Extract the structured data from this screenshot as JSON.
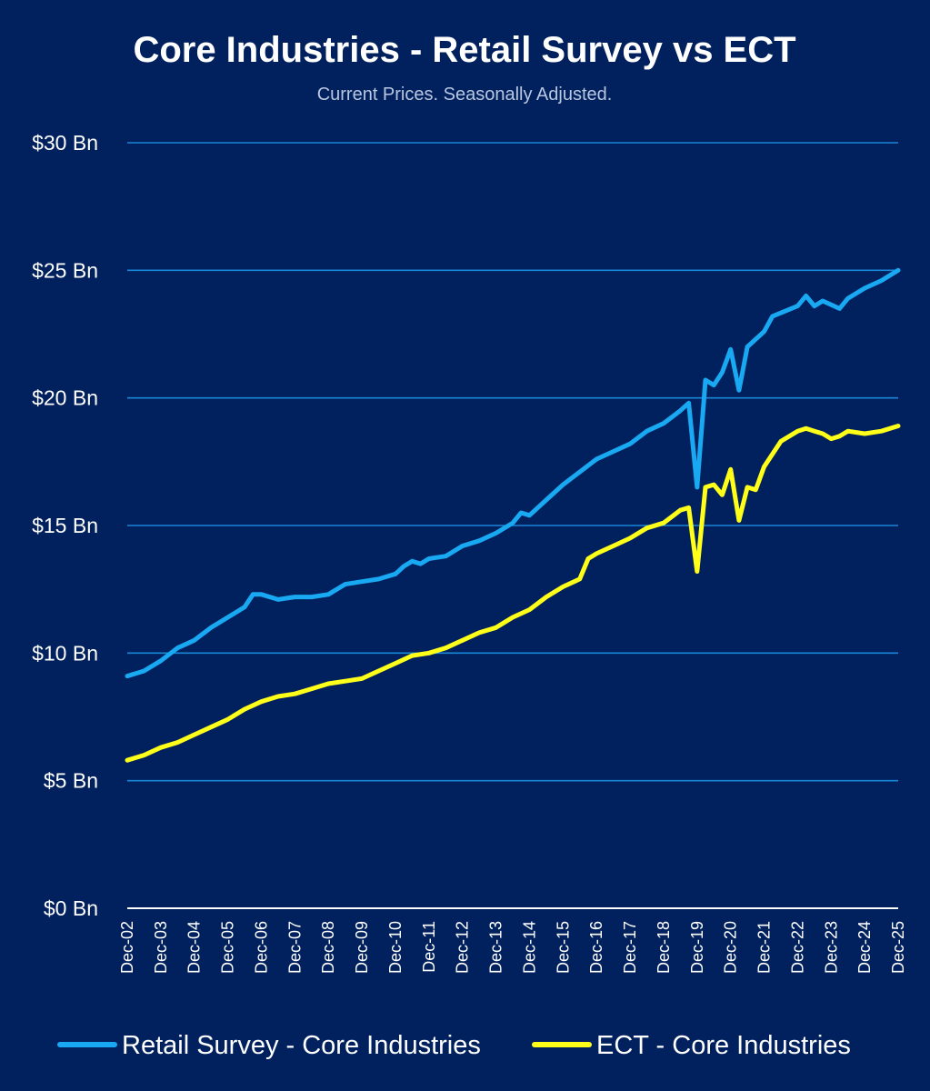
{
  "chart_data": {
    "type": "line",
    "title": "Core Industries - Retail Survey vs ECT",
    "subtitle": "Current Prices. Seasonally Adjusted.",
    "ylim": [
      0,
      30
    ],
    "yticks": [
      0,
      5,
      10,
      15,
      20,
      25,
      30
    ],
    "ytick_labels": [
      "$0 Bn",
      "$5 Bn",
      "$10 Bn",
      "$15 Bn",
      "$20 Bn",
      "$25 Bn",
      "$30 Bn"
    ],
    "xtick_labels": [
      "Dec-02",
      "Dec-03",
      "Dec-04",
      "Dec-05",
      "Dec-06",
      "Dec-07",
      "Dec-08",
      "Dec-09",
      "Dec-10",
      "Dec-11",
      "Dec-12",
      "Dec-13",
      "Dec-14",
      "Dec-15",
      "Dec-16",
      "Dec-17",
      "Dec-18",
      "Dec-19",
      "Dec-20",
      "Dec-21",
      "Dec-22",
      "Dec-23",
      "Dec-24",
      "Dec-25"
    ],
    "grid": true,
    "legend_position": "bottom",
    "colors": {
      "background": "#00215e",
      "grid": "#1a86d6",
      "retail": "#19a8f2",
      "ect": "#ffff1a"
    },
    "series": [
      {
        "name": "Retail Survey - Core Industries",
        "points": [
          [
            "Dec-02",
            9.1
          ],
          [
            "Jun-03",
            9.3
          ],
          [
            "Dec-03",
            9.7
          ],
          [
            "Jun-04",
            10.2
          ],
          [
            "Dec-04",
            10.5
          ],
          [
            "Jun-05",
            11.0
          ],
          [
            "Dec-05",
            11.4
          ],
          [
            "Jun-06",
            11.8
          ],
          [
            "Sep-06",
            12.3
          ],
          [
            "Dec-06",
            12.3
          ],
          [
            "Jun-07",
            12.1
          ],
          [
            "Dec-07",
            12.2
          ],
          [
            "Jun-08",
            12.2
          ],
          [
            "Dec-08",
            12.3
          ],
          [
            "Jun-09",
            12.7
          ],
          [
            "Dec-09",
            12.8
          ],
          [
            "Jun-10",
            12.9
          ],
          [
            "Dec-10",
            13.1
          ],
          [
            "Mar-11",
            13.4
          ],
          [
            "Jun-11",
            13.6
          ],
          [
            "Sep-11",
            13.5
          ],
          [
            "Dec-11",
            13.7
          ],
          [
            "Jun-12",
            13.8
          ],
          [
            "Dec-12",
            14.2
          ],
          [
            "Jun-13",
            14.4
          ],
          [
            "Dec-13",
            14.7
          ],
          [
            "Jun-14",
            15.1
          ],
          [
            "Sep-14",
            15.5
          ],
          [
            "Dec-14",
            15.4
          ],
          [
            "Jun-15",
            16.0
          ],
          [
            "Dec-15",
            16.6
          ],
          [
            "Jun-16",
            17.1
          ],
          [
            "Dec-16",
            17.6
          ],
          [
            "Jun-17",
            17.9
          ],
          [
            "Dec-17",
            18.2
          ],
          [
            "Jun-18",
            18.7
          ],
          [
            "Dec-18",
            19.0
          ],
          [
            "Jun-19",
            19.5
          ],
          [
            "Sep-19",
            19.8
          ],
          [
            "Dec-19",
            16.5
          ],
          [
            "Mar-20",
            20.7
          ],
          [
            "Jun-20",
            20.5
          ],
          [
            "Sep-20",
            21.0
          ],
          [
            "Dec-20",
            21.9
          ],
          [
            "Mar-21",
            20.3
          ],
          [
            "Jun-21",
            22.0
          ],
          [
            "Dec-21",
            22.6
          ],
          [
            "Mar-22",
            23.2
          ],
          [
            "Dec-22",
            23.6
          ],
          [
            "Mar-23",
            24.0
          ],
          [
            "Jun-23",
            23.6
          ],
          [
            "Sep-23",
            23.8
          ],
          [
            "Mar-24",
            23.5
          ],
          [
            "Jun-24",
            23.9
          ],
          [
            "Dec-24",
            24.3
          ],
          [
            "Jun-25",
            24.6
          ],
          [
            "Dec-25",
            25.0
          ]
        ]
      },
      {
        "name": "ECT - Core Industries",
        "points": [
          [
            "Dec-02",
            5.8
          ],
          [
            "Jun-03",
            6.0
          ],
          [
            "Dec-03",
            6.3
          ],
          [
            "Jun-04",
            6.5
          ],
          [
            "Dec-04",
            6.8
          ],
          [
            "Jun-05",
            7.1
          ],
          [
            "Dec-05",
            7.4
          ],
          [
            "Jun-06",
            7.8
          ],
          [
            "Dec-06",
            8.1
          ],
          [
            "Jun-07",
            8.3
          ],
          [
            "Dec-07",
            8.4
          ],
          [
            "Jun-08",
            8.6
          ],
          [
            "Dec-08",
            8.8
          ],
          [
            "Jun-09",
            8.9
          ],
          [
            "Dec-09",
            9.0
          ],
          [
            "Jun-10",
            9.3
          ],
          [
            "Dec-10",
            9.6
          ],
          [
            "Jun-11",
            9.9
          ],
          [
            "Dec-11",
            10.0
          ],
          [
            "Jun-12",
            10.2
          ],
          [
            "Dec-12",
            10.5
          ],
          [
            "Jun-13",
            10.8
          ],
          [
            "Dec-13",
            11.0
          ],
          [
            "Jun-14",
            11.4
          ],
          [
            "Dec-14",
            11.7
          ],
          [
            "Jun-15",
            12.2
          ],
          [
            "Dec-15",
            12.6
          ],
          [
            "Jun-16",
            12.9
          ],
          [
            "Sep-16",
            13.7
          ],
          [
            "Dec-16",
            13.9
          ],
          [
            "Jun-17",
            14.2
          ],
          [
            "Dec-17",
            14.5
          ],
          [
            "Jun-18",
            14.9
          ],
          [
            "Dec-18",
            15.1
          ],
          [
            "Jun-19",
            15.6
          ],
          [
            "Sep-19",
            15.7
          ],
          [
            "Dec-19",
            13.2
          ],
          [
            "Mar-20",
            16.5
          ],
          [
            "Jun-20",
            16.6
          ],
          [
            "Sep-20",
            16.2
          ],
          [
            "Dec-20",
            17.2
          ],
          [
            "Mar-21",
            15.2
          ],
          [
            "Jun-21",
            16.5
          ],
          [
            "Sep-21",
            16.4
          ],
          [
            "Dec-21",
            17.3
          ],
          [
            "Jun-22",
            18.3
          ],
          [
            "Dec-22",
            18.7
          ],
          [
            "Mar-23",
            18.8
          ],
          [
            "Jun-23",
            18.7
          ],
          [
            "Sep-23",
            18.6
          ],
          [
            "Dec-23",
            18.4
          ],
          [
            "Mar-24",
            18.5
          ],
          [
            "Jun-24",
            18.7
          ],
          [
            "Dec-24",
            18.6
          ],
          [
            "Jun-25",
            18.7
          ],
          [
            "Dec-25",
            18.9
          ]
        ]
      }
    ]
  }
}
